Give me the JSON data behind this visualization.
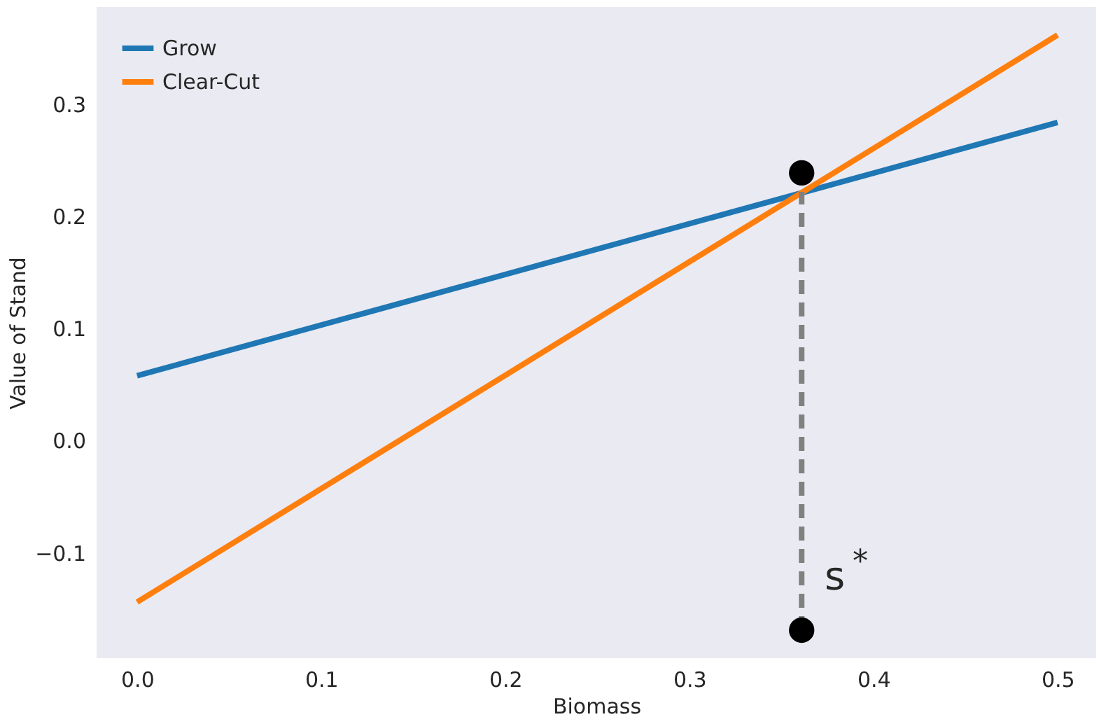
{
  "chart_data": {
    "type": "line",
    "xlabel": "Biomass",
    "ylabel": "Value of Stand",
    "xlim": [
      -0.022,
      0.521
    ],
    "ylim": [
      -0.194,
      0.387
    ],
    "xticks": [
      {
        "value": 0,
        "label": "0.0"
      },
      0.1,
      0.2,
      0.3,
      0.4,
      0.5
    ],
    "yticks": [
      {
        "value": -0.1,
        "label": "−0.1"
      },
      {
        "value": 0,
        "label": "0.0"
      },
      0.1,
      0.2,
      0.3
    ],
    "grid": false,
    "legend": "top left",
    "line_style": "solid",
    "marker": "none",
    "series": [
      {
        "name": "Grow",
        "color": "#1f77b4",
        "x": [
          0,
          0.5
        ],
        "values": [
          0.058,
          0.284
        ]
      },
      {
        "name": "Clear-Cut",
        "color": "#ff7f0e",
        "x": [
          0,
          0.5
        ],
        "values": [
          -0.144,
          0.362
        ]
      },
      {
        "type": "line",
        "line_style": "dashed",
        "color": "#808080",
        "x": [
          0.361,
          0.361
        ],
        "values": [
          -0.169,
          0.222
        ]
      },
      {
        "type": "scatter",
        "marker": "circle",
        "color": "#000000",
        "x": [
          0.361,
          0.361
        ],
        "values": [
          0.239,
          -0.169
        ]
      }
    ],
    "annotations": [
      "s$^{*}$"
    ]
  }
}
